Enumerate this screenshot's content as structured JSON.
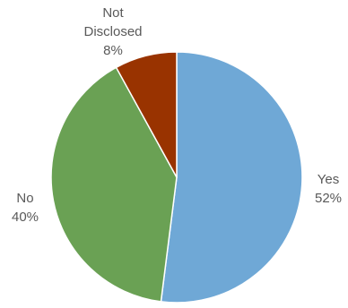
{
  "chart_data": {
    "type": "pie",
    "title": "",
    "slices": [
      {
        "label": "Yes",
        "value": 52,
        "value_label": "52%",
        "color": "#6fa8d6"
      },
      {
        "label": "No",
        "value": 40,
        "value_label": "40%",
        "color": "#6aa154"
      },
      {
        "label": "Not Disclosed",
        "label_lines": [
          "Not",
          "Disclosed"
        ],
        "value": 8,
        "value_label": "8%",
        "color": "#993300"
      }
    ],
    "start": "12 o'clock",
    "direction": "clockwise",
    "legend": "none",
    "label_color": "#595959"
  }
}
